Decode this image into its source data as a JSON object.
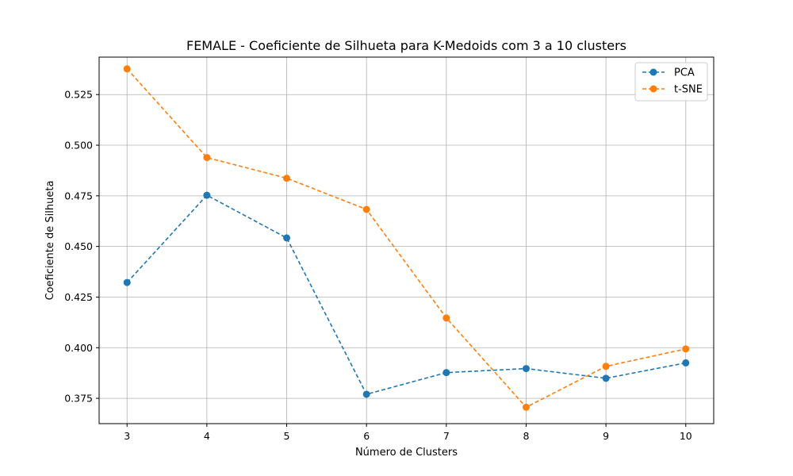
{
  "chart_data": {
    "type": "line",
    "title": "FEMALE - Coeficiente de Silhueta para K-Medoids com 3 a 10 clusters",
    "xlabel": "Número de Clusters",
    "ylabel": "Coeficiente de Silhueta",
    "x": [
      3,
      4,
      5,
      6,
      7,
      8,
      9,
      10
    ],
    "xticks": [
      "3",
      "4",
      "5",
      "6",
      "7",
      "8",
      "9",
      "10"
    ],
    "yticks": [
      "0.375",
      "0.400",
      "0.425",
      "0.450",
      "0.475",
      "0.500",
      "0.525"
    ],
    "ylim": [
      0.3625,
      0.5435
    ],
    "xlim": [
      2.65,
      10.35
    ],
    "grid": true,
    "legend_position": "top-right",
    "series": [
      {
        "name": "PCA",
        "color": "#1f77b4",
        "values": [
          0.4322,
          0.4753,
          0.4542,
          0.377,
          0.3877,
          0.3897,
          0.3849,
          0.3925
        ]
      },
      {
        "name": "t-SNE",
        "color": "#ff7f0e",
        "values": [
          0.5377,
          0.4939,
          0.4837,
          0.4683,
          0.4147,
          0.3706,
          0.3908,
          0.3994
        ]
      }
    ]
  }
}
